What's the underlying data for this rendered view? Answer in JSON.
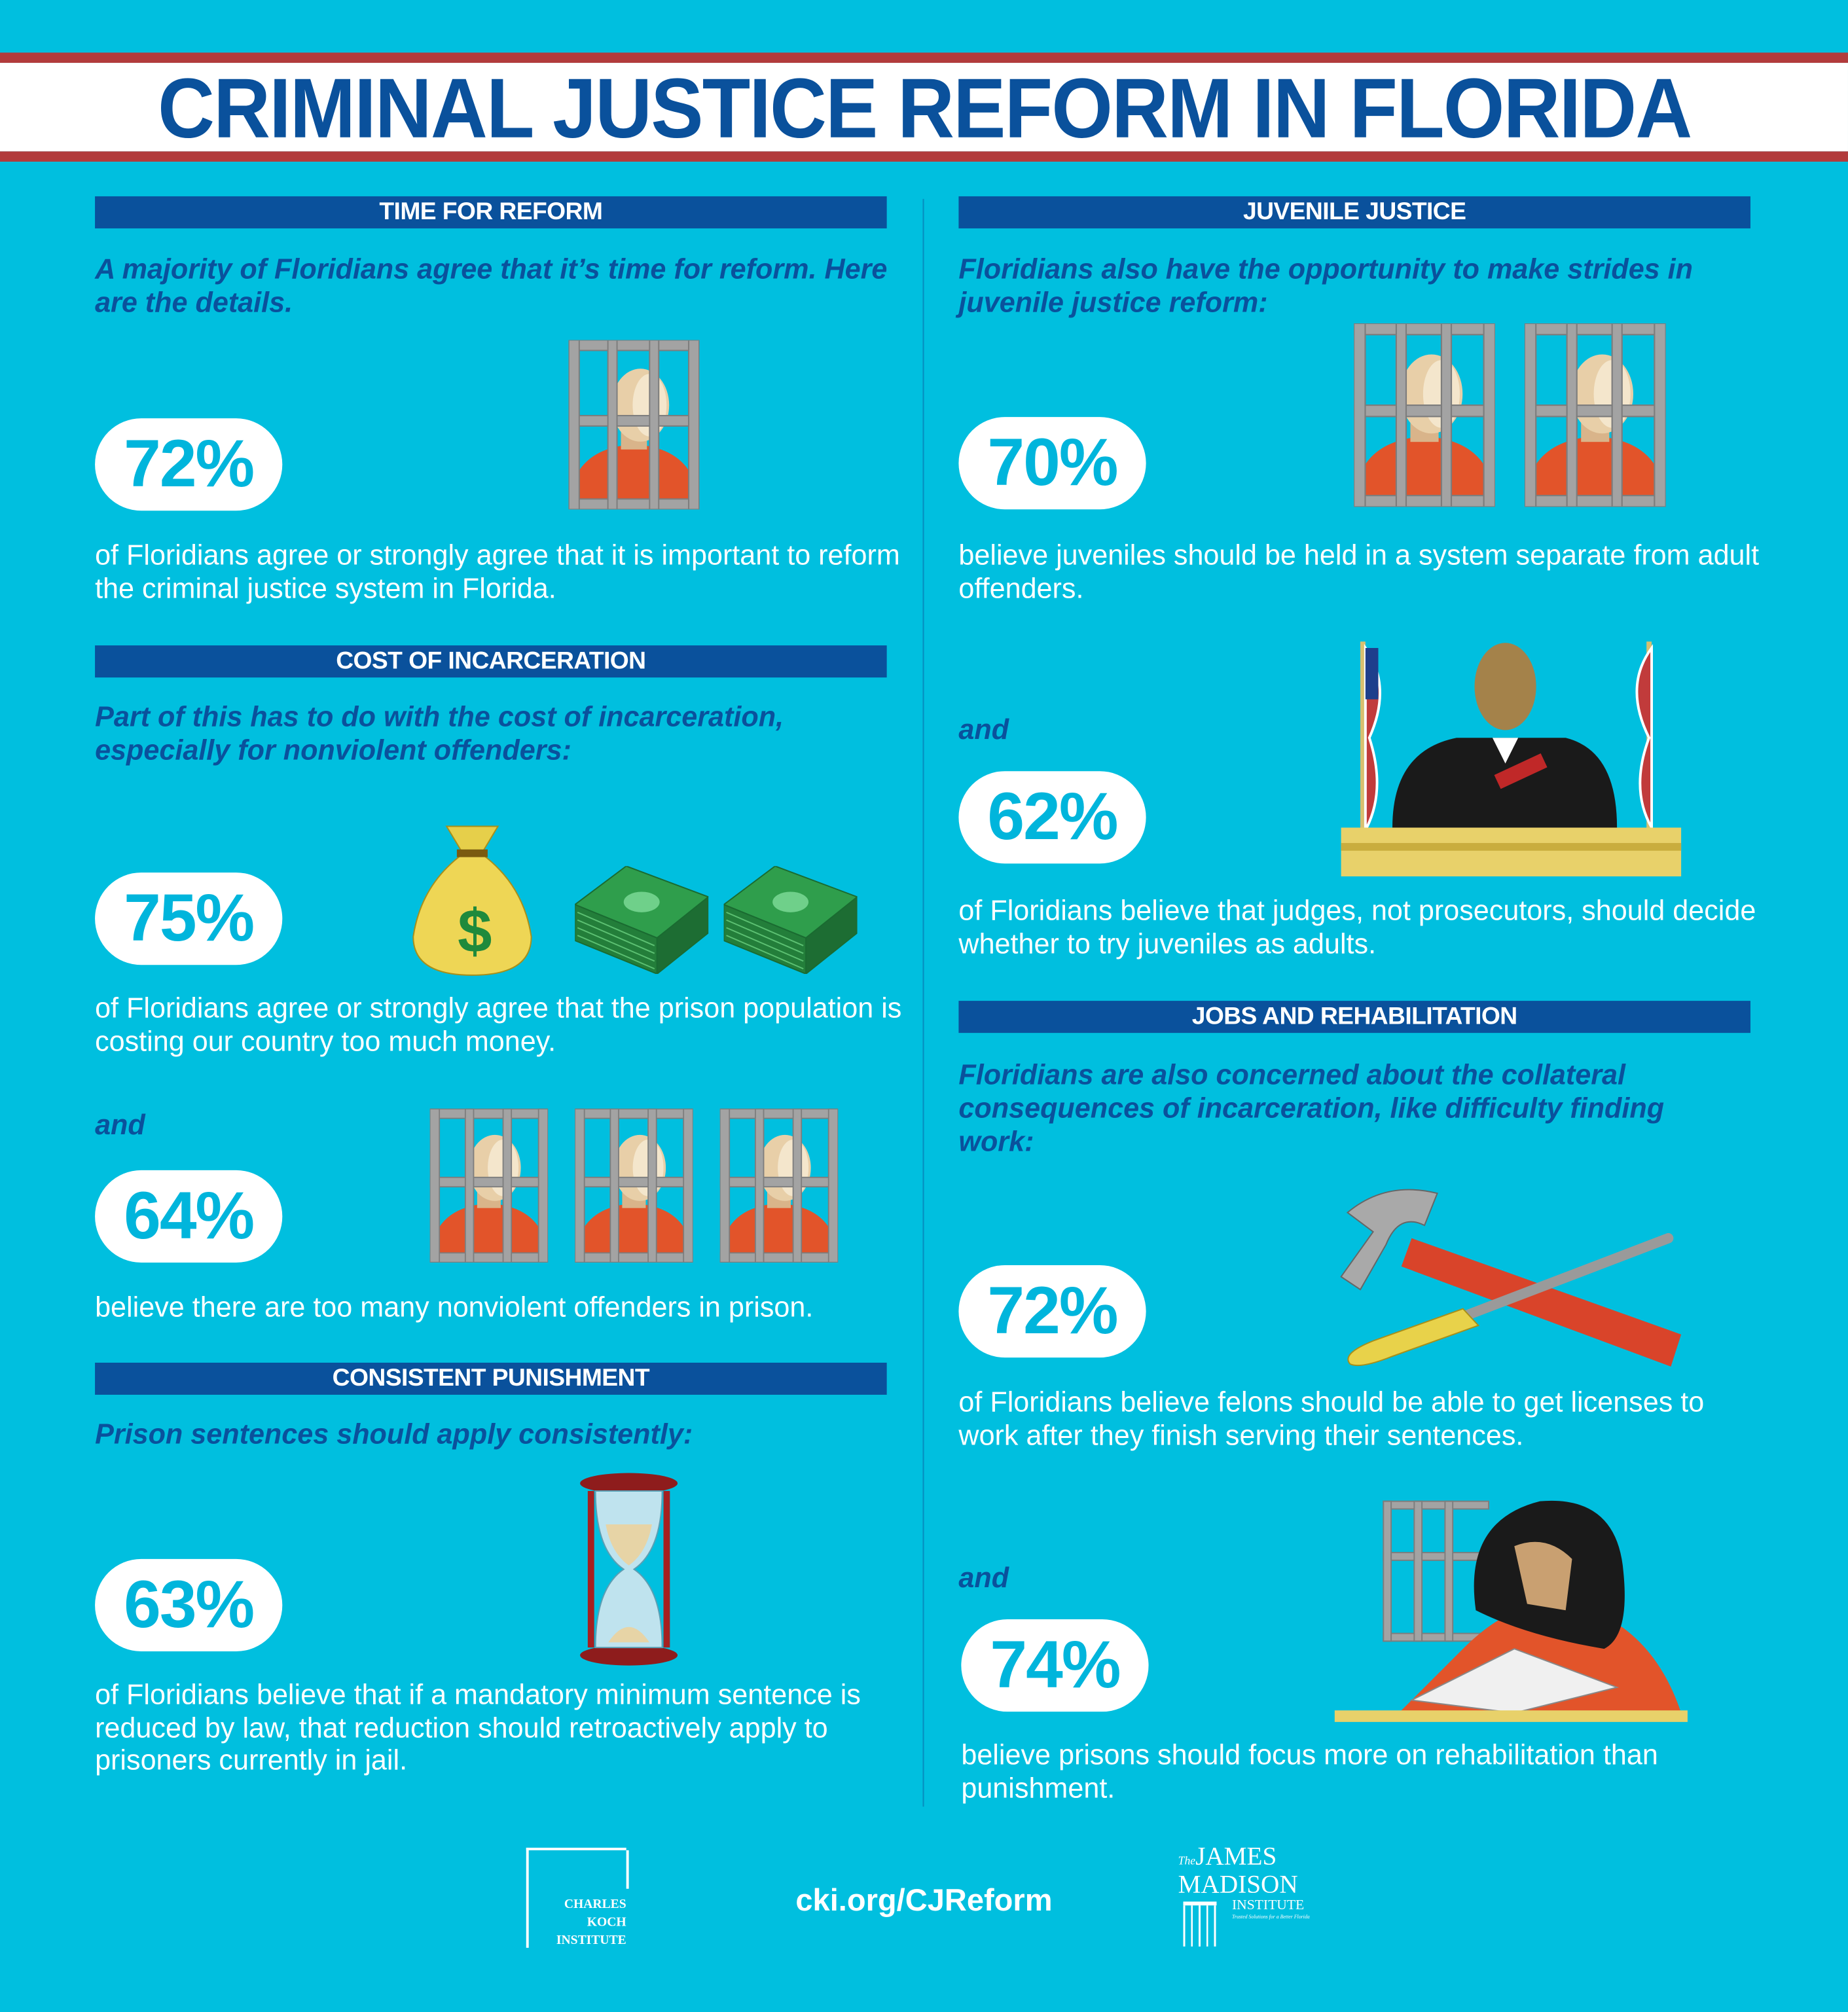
{
  "header": {
    "title": "CRIMINAL JUSTICE REFORM IN FLORIDA"
  },
  "colors": {
    "background": "#00bfdf",
    "navy": "#0a519c",
    "red": "#b23b3c",
    "pill_text": "#00b5dc"
  },
  "left": {
    "time_for_reform": {
      "heading": "TIME FOR REFORM",
      "subtitle": "A majority of Floridians agree that it’s time for reform. Here are the details.",
      "stat": {
        "percent": "72%",
        "text": "of Floridians agree or strongly agree that it is important to reform the criminal justice system in Florida."
      }
    },
    "cost_of_incarceration": {
      "heading": "COST OF INCARCERATION",
      "subtitle": "Part of this has to do with the cost of incarceration, especially for nonviolent offenders:",
      "stat1": {
        "percent": "75%",
        "text": "of Floridians agree or strongly agree that the prison population is costing our country too much money."
      },
      "and": "and",
      "stat2": {
        "percent": "64%",
        "text": "believe there are too many nonviolent offenders in prison."
      },
      "money_symbol": "$"
    },
    "consistent_punishment": {
      "heading": "CONSISTENT PUNISHMENT",
      "subtitle": "Prison sentences should apply consistently:",
      "stat": {
        "percent": "63%",
        "text": "of Floridians believe that if a mandatory minimum sentence is reduced by law, that reduction should retroactively apply to prisoners currently in jail."
      }
    }
  },
  "right": {
    "juvenile_justice": {
      "heading": "JUVENILE JUSTICE",
      "subtitle": "Floridians also have the opportunity to make strides in juvenile justice reform:",
      "stat1": {
        "percent": "70%",
        "text": "believe juveniles should be held in a system separate from adult offenders."
      },
      "and": "and",
      "stat2": {
        "percent": "62%",
        "text": "of Floridians believe that judges, not prosecutors, should decide whether to try juveniles as adults."
      }
    },
    "jobs": {
      "heading": "JOBS AND REHABILITATION",
      "subtitle": "Floridians are also concerned about the collateral consequences of incarceration, like difficulty finding work:",
      "stat1": {
        "percent": "72%",
        "text": "of Floridians believe felons should be able to get licenses to work after they finish serving their sentences."
      },
      "and": "and",
      "stat2": {
        "percent": "74%",
        "text": "believe prisons should focus more on rehabilitation than punishment."
      }
    }
  },
  "footer": {
    "cki_logo": [
      "CHARLES",
      "KOCH",
      "INSTITUTE"
    ],
    "url": "cki.org/CJReform",
    "jmi_logo": {
      "the": "The",
      "line1": "JAMES",
      "line2": "MADISON",
      "line3": "INSTITUTE",
      "tagline": "Trusted Solutions for a Better Florida"
    }
  }
}
